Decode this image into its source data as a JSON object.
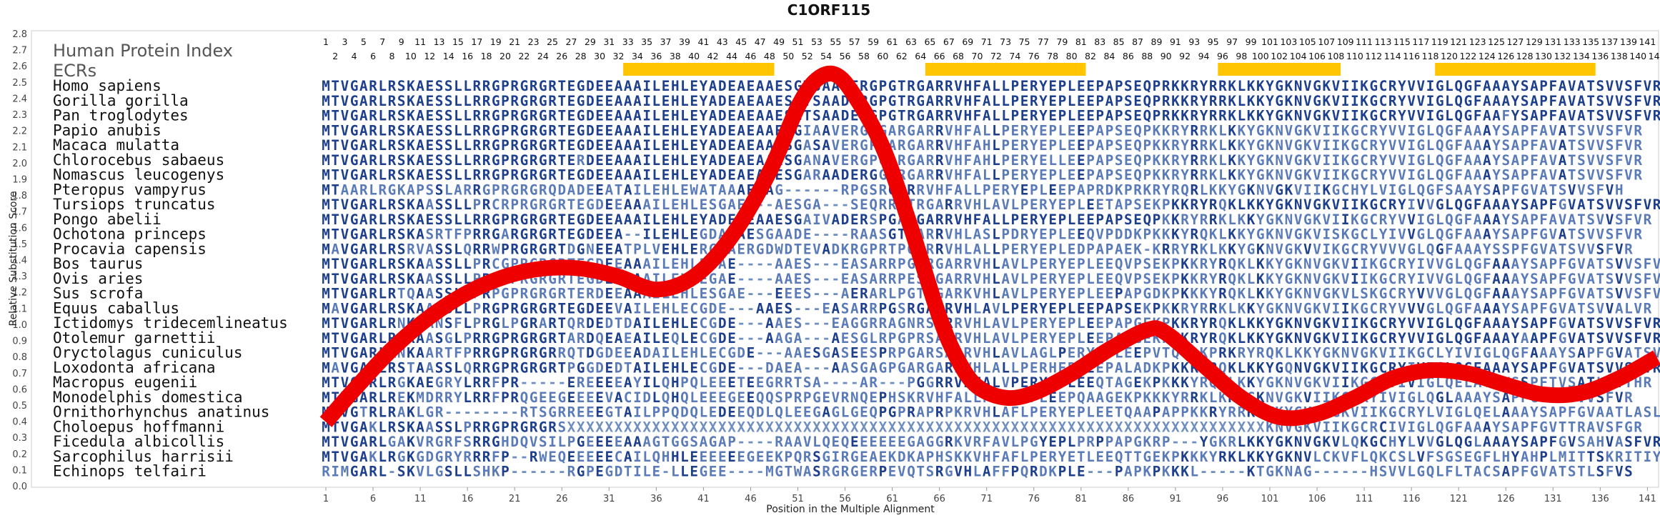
{
  "chart_data": {
    "type": "line",
    "title": "C1ORF115",
    "xlabel": "Position in the Multiple Alignment",
    "ylabel": "Relative Substitution Score",
    "ylim": [
      0,
      2.8
    ],
    "yticks": [
      "0.0",
      "0.1",
      "0.2",
      "0.3",
      "0.4",
      "0.5",
      "0.6",
      "0.7",
      "0.8",
      "0.9",
      "1.0",
      "1.1",
      "1.2",
      "1.3",
      "1.4",
      "1.5",
      "1.6",
      "1.7",
      "1.8",
      "1.9",
      "2.0",
      "2.1",
      "2.2",
      "2.3",
      "2.4",
      "2.5",
      "2.6",
      "2.7",
      "2.8"
    ],
    "xlim": [
      1,
      142
    ],
    "xticks": [
      "1",
      "6",
      "11",
      "16",
      "21",
      "26",
      "31",
      "36",
      "41",
      "46",
      "51",
      "56",
      "61",
      "66",
      "71",
      "76",
      "81",
      "86",
      "91",
      "96",
      "101",
      "106",
      "111",
      "116",
      "121",
      "126",
      "131",
      "136",
      "141"
    ],
    "human_protein_index_label": "Human Protein Index",
    "ecrs_label": "ECRs",
    "ecr_regions": [
      [
        33,
        48
      ],
      [
        65,
        81
      ],
      [
        96,
        108
      ],
      [
        119,
        135
      ]
    ],
    "series": [
      {
        "color": "#ee0000",
        "x": [
          1,
          4,
          8,
          12,
          16,
          20,
          24,
          28,
          32,
          36,
          40,
          44,
          48,
          51,
          53,
          55,
          57,
          60,
          63,
          66,
          68,
          70,
          73,
          76,
          80,
          84,
          88,
          90,
          94,
          98,
          102,
          106,
          110,
          114,
          118,
          122,
          126,
          130,
          134,
          138,
          142
        ],
        "y": [
          0.4,
          0.6,
          0.85,
          1.05,
          1.2,
          1.3,
          1.35,
          1.35,
          1.3,
          1.22,
          1.3,
          1.55,
          1.95,
          2.35,
          2.52,
          2.55,
          2.42,
          2.1,
          1.6,
          1.05,
          0.78,
          0.62,
          0.55,
          0.58,
          0.7,
          0.85,
          0.97,
          0.95,
          0.75,
          0.55,
          0.43,
          0.45,
          0.55,
          0.67,
          0.72,
          0.7,
          0.63,
          0.57,
          0.58,
          0.67,
          0.8
        ]
      }
    ],
    "sequences": [
      {
        "species": "Homo sapiens",
        "seq": "MTVGARLRSKAESSLLRRGPRGRGRTEGDEEAAAILEHLEYADEAEAAESGTSAADERGPGTRGARRVHFALLPERYEPLEEPAPSEQPRKKRYRRKLKKYGKNVGKVIIKGCRYVVIGLQGFAAAYSAPFAVATSVVSFVR"
      },
      {
        "species": "Gorilla gorilla",
        "seq": "MTVGARLRSKAESSLLRRGPRGRGRTEGDEEAAAILEHLEYADEAEAAESGTSAADERGPGTRGARRVHFALLPERYEPLEEPAPSEQPRKKRYRRKLKKYGKNVGKVIIKGCRYVVIGLQGFAAAYSAPFAVATSVVSFVR"
      },
      {
        "species": "Pan troglodytes",
        "seq": "MTVGARLRSKAESSLLRRGPRGRGRTEGDEEAAAILEHLEYADEAEAAESGTSAADERGPGTRGARRVHFALLPERYEPLEEPAPSEQPRKKRYRRKLKKYGKNVGKVIIKGCRYVVIGLQGFAAFYSAPFAVATSVVSFVR"
      },
      {
        "species": "Papio anubis",
        "seq": "MTVGARLRSKAESSLLRRGPRGRGRTEGDEEAAAILEHLEYADEAEAAESGIAAVERGPGARGARRVHFALLPERYEPLEEPAPSEQPKKRYRRKLKKYGKNVGKVIIKGCRYVVIGLQGFAAAYSAPFAVATSVVSFVR"
      },
      {
        "species": "Macaca mulatta",
        "seq": "MTVGARLRSKAESSLLRRGPRGRGRTEGDEEAAAILEHLEYADEAEAAESGASAVERGPGARGARRVHFAHLPERYEPLEEPAPSEQPKKRYRRKLKKYGKNVGKVIIKGCRYVVIGLQGFAAAYSAPFAVATSVVSFVR"
      },
      {
        "species": "Chlorocebus sabaeus",
        "seq": "MTVGARLRSKAESSLLRRGPRGRGRTERDEEAAAILEHLEYADEAEAAESGANAVERGPGARGARRVHFAHLPERYELLEEPAPSEQPKKRYRRKLKKYGKNVGKVIIKGCRYVVIGLQGFAAAYSAPFAVATSVVSFVR"
      },
      {
        "species": "Nomascus leucogenys",
        "seq": "MTVGARLRSKAESSLLRRGPRGRGRTEGDEEAAAILEHLEYADEAEAAESGARAADERGGGRGARRVHFALLPERYEPLEEPAPSEQPKKRYRRKLKKYGKNVGKVIIKGCRYVVIGLQGFAAAYSAPFAVATSVVSFVR"
      },
      {
        "species": "Pteropus vampyrus",
        "seq": "MTAARLRGKAPSSLARRGPRGRGRQDADEEATAILEHLEWATAAAESAG------RPGSRGARRVHFALLPERYEPLEEPAPRDKPRKRYRQRLKKYGKNVGKVIIKGCHYLVIGLQGFSAAYSAPFGVATSVVSFVH"
      },
      {
        "species": "Tursiops truncatus",
        "seq": "MTVGARLRSKAASSLLPRCRPRGRGRTEGDEEAAAILEHLESGAEA--AESGA---SEQRRGTRGARRVHLAVLPERYEPLEETAPSEKPKKRYRQKLKKYGKNVGKVIIKGCRYIVVGLQGFAAAYSAPFGVATSVVSFVR"
      },
      {
        "species": "Pongo abelii",
        "seq": "MTVGARLRSKAESSLLRRGPRGRGRTEGDEEAAAILEHLEYADEAEAAESGAIVADERSPGARGARRVHFALLPERYEPLEEPAPSEQPKKRYRRKLKKYGKNVGKVIIKGCRYVVIGLQGFAAAYSAPFAVATSVVSFVR"
      },
      {
        "species": "Ochotona princeps",
        "seq": "MTVGARLRSKASRTFPRRGARGRGRTEGDEEA--ILEHLEGDATAESGAADE----RAASGTSARRVHLASLPDRYEPLEEQVPDDKPKKKYRQKLKKYGKNVGKVISKGCLYIVVGLQGFAAAYSAPFGVATSVVSFVR"
      },
      {
        "species": "Procavia capensis",
        "seq": "MAVGARLRSRVASSLQRRWPRGRGRTDGNEEATPLVEHLERGTAERGDWDTEVADKRGPRTPGARRVHLALLPERYEPLEDPAPAEK-KRRYRKLKKYGKNVGKVVIKGCRYVVVGLQGFAAAYSSPFGVATSVVSFVR"
      },
      {
        "species": "Bos taurus",
        "seq": "MTVGARLRSKAASSLLPRCGPRGRGRTEGDEEAAAILEHLEGAE----AAES---EASARRPGSRGARRVHLAVLPERYEPLEEQVPSEKPKKRYRQKLKKYGKNVGKVIIKGCRYIVVGLQGFAAAYSAPFGVATSVVSFVR"
      },
      {
        "species": "Ovis aries",
        "seq": "MTVGARLRSKAASSLLPRCGPRGRGRTEGDEEAAAILEHLEGAE----AAES---EASARRPESRGARRVHLAVLPERYEPLEEQVPSEKPKKRYRQKLKKYGKNVGKVIIKGCRYIVVGLQGFAAAYSAPFGVATSVVSFVR"
      },
      {
        "species": "Sus scrofa",
        "seq": "MTVGARLRTQAASSLLPRPGPRGRGRTERDEEAAAILEHLESGAE---EEES---AERARLPGTRGARKVHLAVLPERYEPLEEPAPGDKPKKKYRQKLKKYGKNVGKVLSKGCRYVVVGLQGFAAAYSAPFGVATSVVSFVR"
      },
      {
        "species": "Equus caballus",
        "seq": "MAVGARLRSKAASSLLPRGPRGRGRTEGDEEVAILEHLECGDE---AAES---EASARRPGSRGARRVHLAVLPERYEPLEEPAPSEKPKKRYRRKLKKYGKNVGKVIIKGCRYVVVGLQGFAAAYSAPFGVATSVVALVR"
      },
      {
        "species": "Ictidomys tridecemlineatus",
        "seq": "MTVGARLRNKAANSFLPRGLPGRARTQRDEDTDAILEHLECGDE---AAES---EAGGRRAGNRSARRVHLAVLPERYEPLEEPAPGEKPKKRYRQKLKKYGKNVGKVIIKGCRYVVIGLQGFAAAYSAPFGVATSVVSFVR"
      },
      {
        "species": "Otolemur garnettii",
        "seq": "MTVGARLRSKAASGLPRRGPRGRGRTARDQEAEAILEQLECGDE---AAGA---AESGLRPGPRSARRVHLAVLPERYEPLEEPAAGEKPKKRYRQKLKKYGKNVGKVIIKGCRYVVIGLQGFAAAYAAPFGVATSVVSFVR"
      },
      {
        "species": "Oryctolagus cuniculus",
        "seq": "MTVGARLRNKAARTFPRRGPRGRGRRQTDGDEEADAILEHLECGDE---AAESGASEESPRPGARSARRVHLAVLAGLPERYEPLEEPVTQGDKPRKRYRQKLKKYGKNVGKVIIKGCLYIVIGLQGFAAAYSAPFGVATSVVSFVR"
      },
      {
        "species": "Loxodonta africana",
        "seq": "MAVGARLRSTAASSLQRRGPRGRGRTPGGDEDTAILEHLECGDE---DAEA---AASGAGPGARGARRVHLALLPERHEPLEEPALADKPKKRYRQKLKKYGQNVGKVIIKGCRYIVIGLQGFAAAYSAPFGVATSVVSFVR"
      },
      {
        "species": "Macropus eugenii",
        "seq": "MTVGARLRGKAEGRYLRRFPR-----EREEEEAYILQHPQLEEETEEGRRTSA----AR---PGGRRVHFALVPERYEPLEEQTAGEKPKKKYRQKLKKYGKNVGKVIIKGCRYIVIGLQELATAYSSPFTVSATLAVTHR"
      },
      {
        "species": "Monodelphis domestica",
        "seq": "MTVGARLREKMDRRYLRRFPRQGEEGEEEEVACIDLQHQLEEEGEEQQSPRPGEVRNQEPHSKRVHFALLPERYEPLEEPQAAGEKPKKKYRRKLKKYGKNVGKVIIKGCRYIVIGLQGLAAAYSAPFGVATSVVSFVR"
      },
      {
        "species": "Ornithorhynchus anatinus",
        "seq": "MTVGTRLRAKLGR--------RTSGRREEEGTAILPPQDQLEDEEQDLQLEEGAGLGEQPGPRAPRPKRVHLAFLPERYEPLEETQAAPAPPKKRYRRKLKKYGKNVGKVIIKGCRYLVIGLQELAAAYSAPFGVAATLASLVR"
      },
      {
        "species": "Choloepus hoffmanni",
        "seq": "MTVGAKLRSKAASSLPRRGPRGRGRSXXXXXXXXXXXXXXXXXXXXXXXXXXXXXXXXXXXXXXXXXXXXXXXXXXXXXXXXXXXXXXXXXXXXXXXXXXKNVGKVIIKGCRCIVIGLQGFAAAYSAPFGVTTRAVSFGR"
      },
      {
        "species": "Ficedula albicollis",
        "seq": "MTVGARLGAKVRGRFSRRGHDQVSILPGEEEEAAAGTGGSAGAP----RAAVLQEQEEEEEEGAGGRKVRFAVLPGYEPLPRPPAPGKRP---YGKRLKKYGKNVGKVLQKGCHYLVVGLQGLAAAYSAPFGVSAHVASFVR"
      },
      {
        "species": "Sarcophilus harrisii",
        "seq": "MTVGAKLRGKGDGRYRRRFP--RWEQEEEEECAILQHHLEEEEEEGEEKPQRSGIRGEAEKDKAPHSKKVHFAFLPERYETLEEQTTGEKPKKKYRKLKKYGKNVLCKVFLQKCSLVFSGSEGFLHYAHPLMITTSKRITIY"
      },
      {
        "species": "Echinops telfairi",
        "seq": "RIMGARL-SKVLGSLLSHKP------RGPEGDTILE-LLEGEE----MGTWASRGRGERPEVQTSRGVHLAFFPQRDKPLE---PAPKPKKKL-----KTGKNAG------HSVVLGQLFLTACSAPFGVATSTLSFVS"
      }
    ]
  }
}
